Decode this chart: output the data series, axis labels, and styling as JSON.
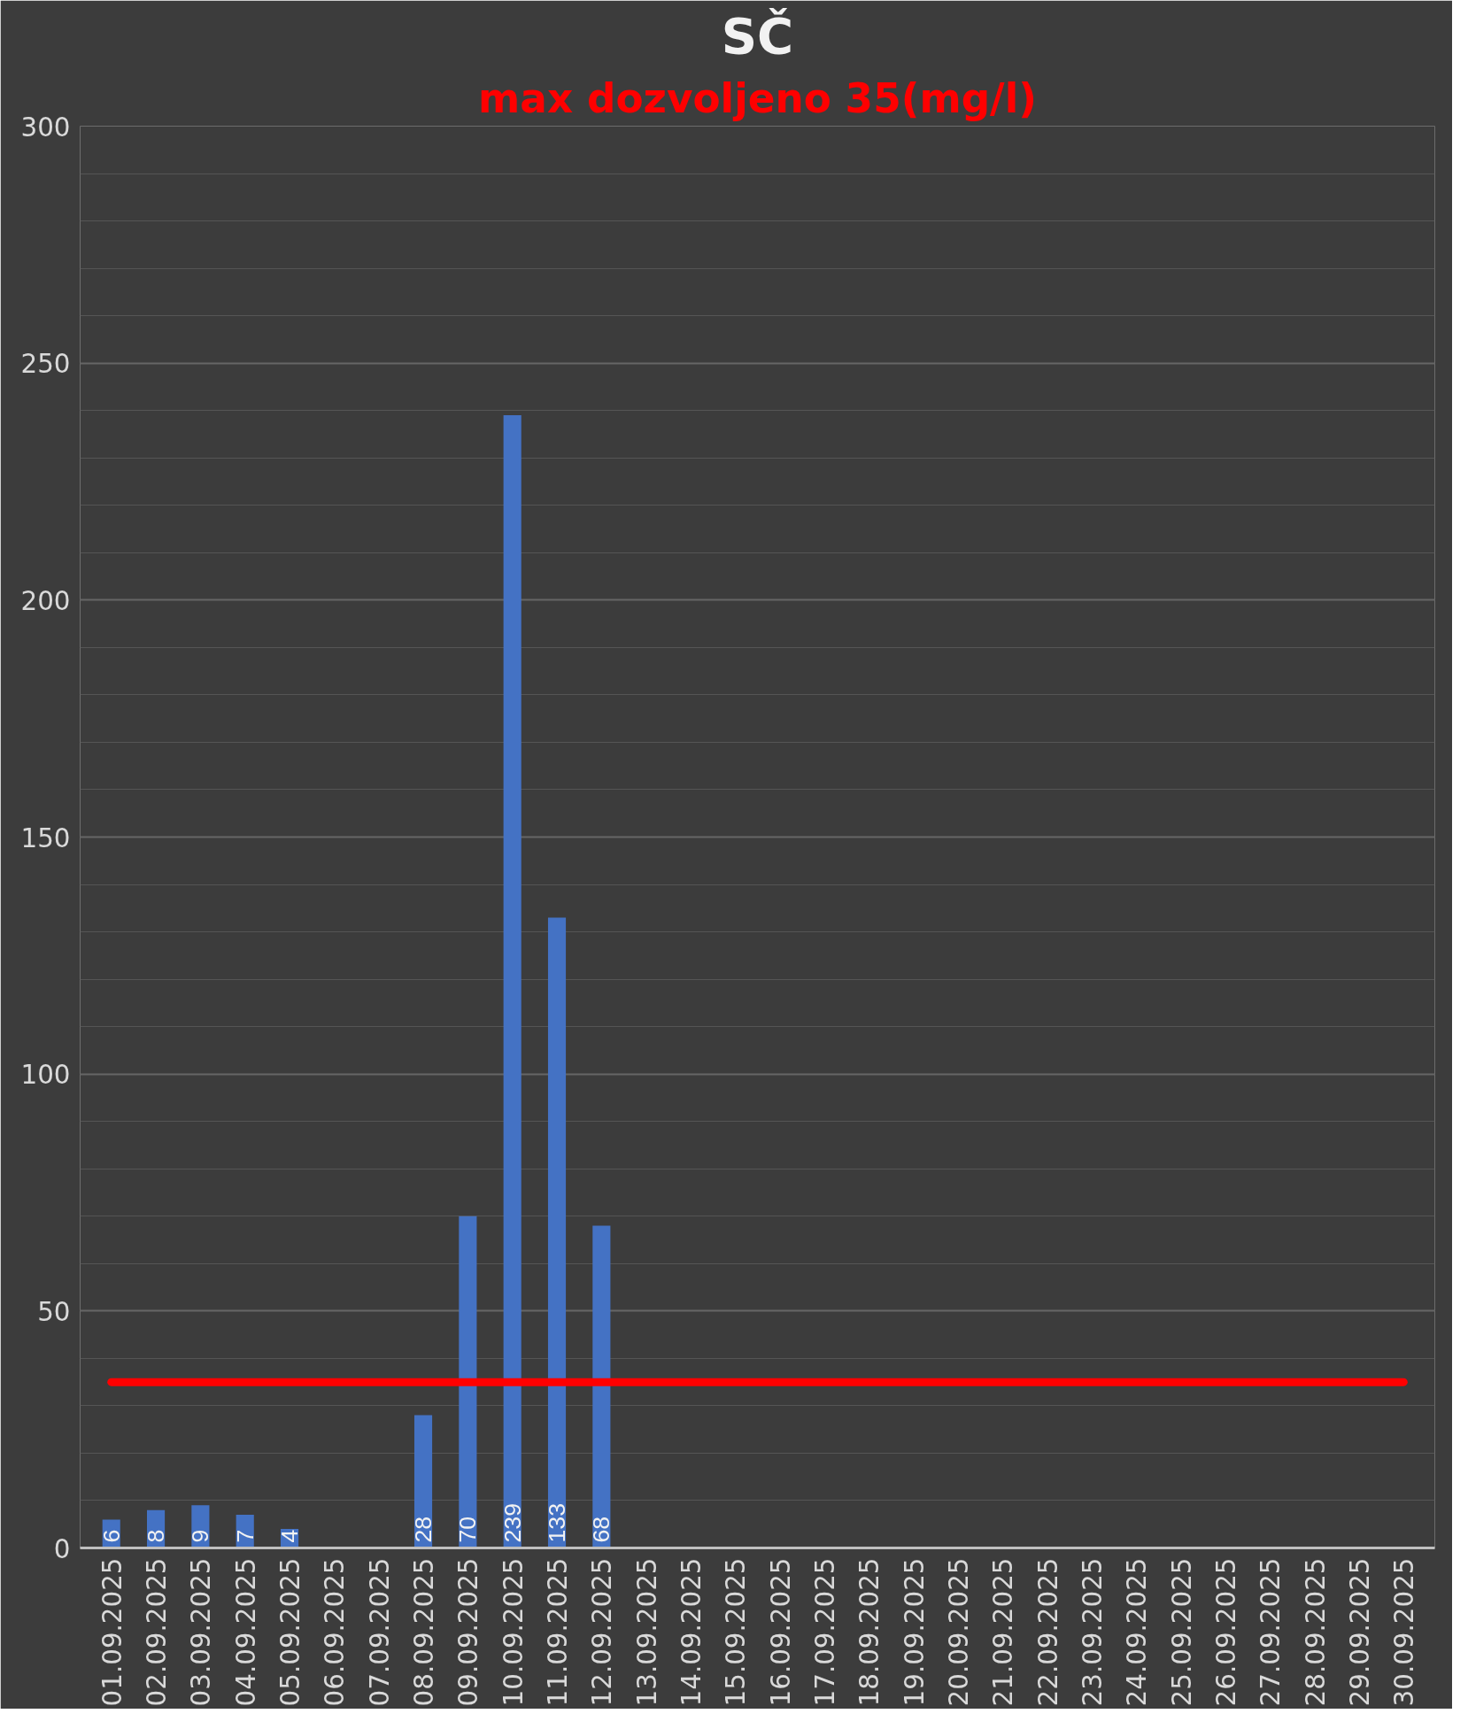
{
  "chart_data": {
    "type": "bar",
    "title": "SČ",
    "subtitle": "max dozvoljeno 35(mg/l)",
    "categories": [
      "01.09.2025",
      "02.09.2025",
      "03.09.2025",
      "04.09.2025",
      "05.09.2025",
      "06.09.2025",
      "07.09.2025",
      "08.09.2025",
      "09.09.2025",
      "10.09.2025",
      "11.09.2025",
      "12.09.2025",
      "13.09.2025",
      "14.09.2025",
      "15.09.2025",
      "16.09.2025",
      "17.09.2025",
      "18.09.2025",
      "19.09.2025",
      "20.09.2025",
      "21.09.2025",
      "22.09.2025",
      "23.09.2025",
      "24.09.2025",
      "25.09.2025",
      "26.09.2025",
      "27.09.2025",
      "28.09.2025",
      "29.09.2025",
      "30.09.2025"
    ],
    "values": [
      6,
      8,
      9,
      7,
      4,
      null,
      null,
      28,
      70,
      239,
      133,
      68,
      null,
      null,
      null,
      null,
      null,
      null,
      null,
      null,
      null,
      null,
      null,
      null,
      null,
      null,
      null,
      null,
      null,
      null
    ],
    "color": "#4472c4",
    "ylim": [
      0,
      300
    ],
    "yticks": [
      0,
      50,
      100,
      150,
      200,
      250,
      300
    ],
    "grid": "y",
    "data_labels": true,
    "ref_lines": [
      {
        "axis": "y",
        "value": 35,
        "color": "#ff0000"
      }
    ]
  }
}
